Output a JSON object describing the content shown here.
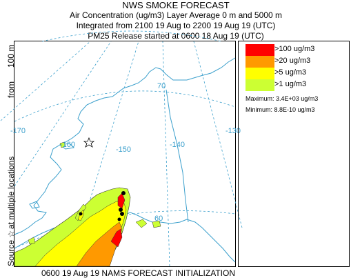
{
  "title": {
    "main": "NWS SMOKE FORECAST",
    "line2": "Air Concentration (ug/m3) Layer Average    0 m and  5000 m",
    "line3": "Integrated from 2100 19 Aug to 2200 19 Aug 19 (UTC)",
    "line4": "PM25 Release started at 0600 18 Aug 19 (UTC)"
  },
  "side_label": {
    "source_text": "Source ☆",
    "locations_text": "at multiple locations",
    "from_text": "from",
    "height_text": "100 m"
  },
  "legend": {
    "items": [
      {
        "label": ">100 ug/m3",
        "color": "#ff0000"
      },
      {
        "label": ">20 ug/m3",
        "color": "#ff9900"
      },
      {
        "label": ">5 ug/m3",
        "color": "#ffff00"
      },
      {
        "label": ">1 ug/m3",
        "color": "#ccff33"
      }
    ],
    "maximum": "Maximum: 3.4E+03 ug/m3",
    "minimum": "Minimum: 8.8E-10 ug/m3"
  },
  "map": {
    "grid_labels": {
      "lat70": "70",
      "lat60": "60",
      "lon170": "-170",
      "lon160": "-160",
      "lon150": "-150",
      "lon140": "-140",
      "lon130": "-130"
    },
    "colors": {
      "coastline": "#3a9fcc",
      "grid": "#3a9fcc",
      "source_marker": "#000000"
    }
  },
  "footer": "0600 19 Aug 19 NAMS FORECAST INITIALIZATION"
}
